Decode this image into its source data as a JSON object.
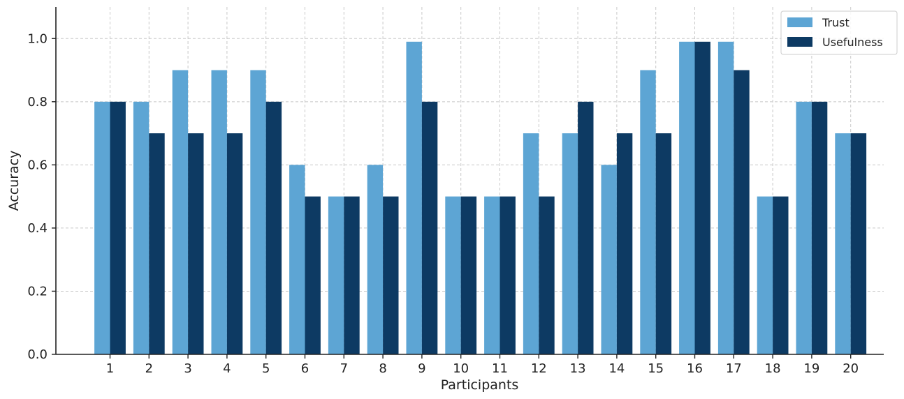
{
  "chart_data": {
    "type": "bar",
    "xlabel": "Participants",
    "ylabel": "Accuracy",
    "categories": [
      "1",
      "2",
      "3",
      "4",
      "5",
      "6",
      "7",
      "8",
      "9",
      "10",
      "11",
      "12",
      "13",
      "14",
      "15",
      "16",
      "17",
      "18",
      "19",
      "20"
    ],
    "series": [
      {
        "name": "Trust",
        "color": "#5da5d4",
        "values": [
          0.8,
          0.8,
          0.9,
          0.9,
          0.9,
          0.6,
          0.5,
          0.6,
          0.99,
          0.5,
          0.5,
          0.7,
          0.7,
          0.6,
          0.9,
          0.99,
          0.99,
          0.5,
          0.8,
          0.7
        ]
      },
      {
        "name": "Usefulness",
        "color": "#0d3a63",
        "values": [
          0.8,
          0.7,
          0.7,
          0.7,
          0.8,
          0.5,
          0.5,
          0.5,
          0.8,
          0.5,
          0.5,
          0.5,
          0.8,
          0.7,
          0.7,
          0.99,
          0.9,
          0.5,
          0.8,
          0.7
        ]
      }
    ],
    "yticks": [
      "0.0",
      "0.2",
      "0.4",
      "0.6",
      "0.8",
      "1.0"
    ],
    "ylim": [
      0,
      1.1
    ],
    "grid": true,
    "legend_position": "top-right"
  }
}
